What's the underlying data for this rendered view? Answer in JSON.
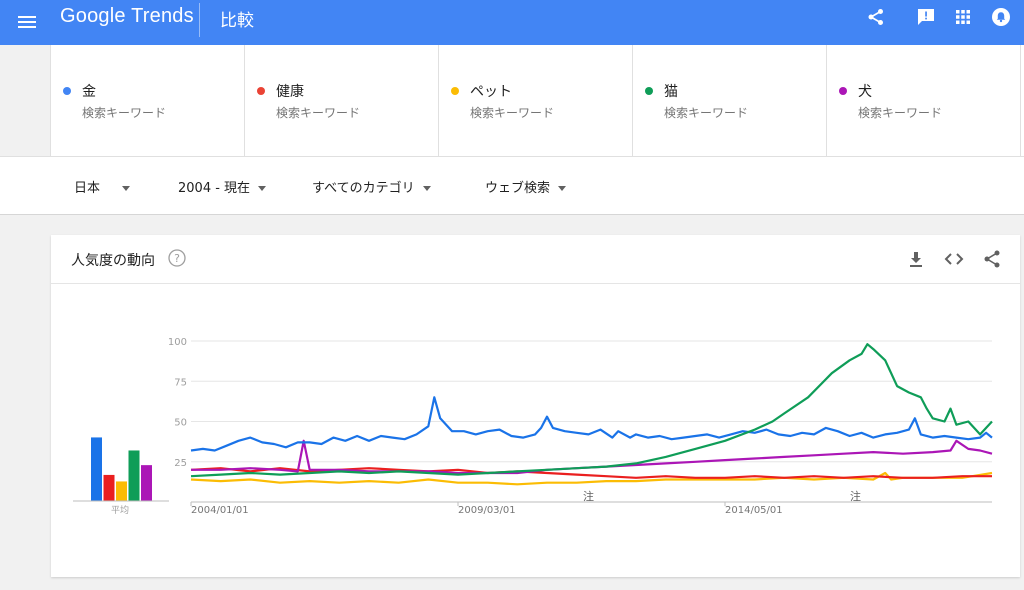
{
  "header": {
    "logo": "Google Trends",
    "page_title": "比較",
    "icons": [
      "menu-icon",
      "share-icon",
      "feedback-icon",
      "apps-icon",
      "notifications-icon"
    ]
  },
  "terms": [
    {
      "name": "金",
      "type": "検索キーワード",
      "color": "#4285f4"
    },
    {
      "name": "健康",
      "type": "検索キーワード",
      "color": "#ea4335"
    },
    {
      "name": "ペット",
      "type": "検索キーワード",
      "color": "#fbbc04"
    },
    {
      "name": "猫",
      "type": "検索キーワード",
      "color": "#0f9d58"
    },
    {
      "name": "犬",
      "type": "検索キーワード",
      "color": "#ab16b6"
    }
  ],
  "filters": {
    "region": "日本",
    "period": "2004 - 現在",
    "category": "すべてのカテゴリ",
    "search_type": "ウェブ検索"
  },
  "card": {
    "title": "人気度の動向",
    "icons": [
      "help-icon",
      "download-icon",
      "embed-icon",
      "share-icon"
    ]
  },
  "chart_data": {
    "type": "line",
    "ylim": [
      0,
      100
    ],
    "yticks": [
      "100",
      "75",
      "50",
      "25"
    ],
    "xticks": [
      "2004/01/01",
      "2009/03/01",
      "2014/05/01"
    ],
    "annotations": [
      "注",
      "注"
    ],
    "average_label": "平均",
    "averages": [
      {
        "name": "金",
        "value": 39,
        "color": "#1a73e8"
      },
      {
        "name": "健康",
        "value": 16,
        "color": "#ea1f1f"
      },
      {
        "name": "ペット",
        "value": 12,
        "color": "#fbbc04"
      },
      {
        "name": "猫",
        "value": 31,
        "color": "#0f9d58"
      },
      {
        "name": "犬",
        "value": 22,
        "color": "#ab16b6"
      }
    ],
    "series": [
      {
        "name": "金",
        "color": "#1a73e8",
        "points": [
          [
            0,
            32
          ],
          [
            2,
            33
          ],
          [
            4,
            32
          ],
          [
            6,
            35
          ],
          [
            8,
            38
          ],
          [
            10,
            40
          ],
          [
            12,
            37
          ],
          [
            14,
            36
          ],
          [
            16,
            34
          ],
          [
            18,
            37
          ],
          [
            20,
            37
          ],
          [
            22,
            36
          ],
          [
            24,
            40
          ],
          [
            26,
            38
          ],
          [
            28,
            41
          ],
          [
            30,
            38
          ],
          [
            32,
            41
          ],
          [
            34,
            40
          ],
          [
            36,
            39
          ],
          [
            38,
            42
          ],
          [
            40,
            47
          ],
          [
            41,
            65
          ],
          [
            42,
            52
          ],
          [
            44,
            44
          ],
          [
            46,
            44
          ],
          [
            48,
            42
          ],
          [
            50,
            44
          ],
          [
            52,
            45
          ],
          [
            54,
            41
          ],
          [
            56,
            40
          ],
          [
            58,
            42
          ],
          [
            59,
            46
          ],
          [
            60,
            53
          ],
          [
            61,
            46
          ],
          [
            63,
            44
          ],
          [
            65,
            43
          ],
          [
            67,
            42
          ],
          [
            69,
            45
          ],
          [
            71,
            40
          ],
          [
            72,
            44
          ],
          [
            74,
            40
          ],
          [
            75,
            42
          ],
          [
            77,
            40
          ],
          [
            79,
            41
          ],
          [
            81,
            39
          ],
          [
            83,
            40
          ],
          [
            85,
            41
          ],
          [
            87,
            42
          ],
          [
            89,
            40
          ],
          [
            91,
            42
          ],
          [
            93,
            44
          ],
          [
            95,
            43
          ],
          [
            97,
            45
          ],
          [
            99,
            42
          ],
          [
            101,
            41
          ],
          [
            103,
            43
          ],
          [
            105,
            42
          ],
          [
            107,
            46
          ],
          [
            109,
            44
          ],
          [
            111,
            41
          ],
          [
            113,
            43
          ],
          [
            115,
            40
          ],
          [
            117,
            42
          ],
          [
            119,
            43
          ],
          [
            121,
            45
          ],
          [
            122,
            52
          ],
          [
            123,
            42
          ],
          [
            125,
            40
          ],
          [
            127,
            41
          ],
          [
            129,
            40
          ],
          [
            131,
            39
          ],
          [
            133,
            40
          ],
          [
            134,
            43
          ],
          [
            135,
            40
          ]
        ]
      },
      {
        "name": "健康",
        "color": "#ea1f1f",
        "points": [
          [
            0,
            20
          ],
          [
            5,
            21
          ],
          [
            10,
            19
          ],
          [
            15,
            21
          ],
          [
            20,
            19
          ],
          [
            25,
            20
          ],
          [
            30,
            21
          ],
          [
            35,
            20
          ],
          [
            40,
            19
          ],
          [
            45,
            20
          ],
          [
            50,
            18
          ],
          [
            55,
            19
          ],
          [
            60,
            18
          ],
          [
            65,
            17
          ],
          [
            70,
            16
          ],
          [
            75,
            15
          ],
          [
            80,
            16
          ],
          [
            85,
            15
          ],
          [
            90,
            15
          ],
          [
            95,
            16
          ],
          [
            100,
            15
          ],
          [
            105,
            16
          ],
          [
            110,
            15
          ],
          [
            115,
            16
          ],
          [
            120,
            15
          ],
          [
            125,
            15
          ],
          [
            130,
            16
          ],
          [
            135,
            16
          ]
        ]
      },
      {
        "name": "ペット",
        "color": "#fbbc04",
        "points": [
          [
            0,
            14
          ],
          [
            5,
            13
          ],
          [
            10,
            14
          ],
          [
            15,
            12
          ],
          [
            20,
            13
          ],
          [
            25,
            12
          ],
          [
            30,
            13
          ],
          [
            35,
            12
          ],
          [
            40,
            14
          ],
          [
            45,
            12
          ],
          [
            50,
            12
          ],
          [
            55,
            11
          ],
          [
            60,
            12
          ],
          [
            65,
            12
          ],
          [
            70,
            13
          ],
          [
            75,
            13
          ],
          [
            80,
            14
          ],
          [
            85,
            14
          ],
          [
            90,
            14
          ],
          [
            95,
            14
          ],
          [
            100,
            15
          ],
          [
            105,
            14
          ],
          [
            110,
            15
          ],
          [
            115,
            14
          ],
          [
            117,
            18
          ],
          [
            118,
            14
          ],
          [
            120,
            15
          ],
          [
            125,
            15
          ],
          [
            130,
            15
          ],
          [
            135,
            18
          ]
        ]
      },
      {
        "name": "猫",
        "color": "#0f9d58",
        "points": [
          [
            0,
            16
          ],
          [
            5,
            17
          ],
          [
            10,
            18
          ],
          [
            15,
            17
          ],
          [
            20,
            18
          ],
          [
            25,
            19
          ],
          [
            30,
            18
          ],
          [
            35,
            19
          ],
          [
            40,
            18
          ],
          [
            45,
            17
          ],
          [
            50,
            18
          ],
          [
            55,
            19
          ],
          [
            60,
            20
          ],
          [
            65,
            21
          ],
          [
            70,
            22
          ],
          [
            75,
            24
          ],
          [
            80,
            28
          ],
          [
            85,
            33
          ],
          [
            90,
            38
          ],
          [
            95,
            45
          ],
          [
            98,
            50
          ],
          [
            100,
            55
          ],
          [
            104,
            65
          ],
          [
            108,
            80
          ],
          [
            111,
            88
          ],
          [
            113,
            92
          ],
          [
            114,
            98
          ],
          [
            115,
            95
          ],
          [
            117,
            88
          ],
          [
            119,
            72
          ],
          [
            121,
            68
          ],
          [
            123,
            65
          ],
          [
            124,
            58
          ],
          [
            125,
            52
          ],
          [
            127,
            50
          ],
          [
            128,
            58
          ],
          [
            129,
            48
          ],
          [
            131,
            50
          ],
          [
            133,
            42
          ],
          [
            135,
            50
          ]
        ]
      },
      {
        "name": "犬",
        "color": "#ab16b6",
        "points": [
          [
            0,
            20
          ],
          [
            5,
            20
          ],
          [
            10,
            21
          ],
          [
            15,
            20
          ],
          [
            18,
            19
          ],
          [
            19,
            38
          ],
          [
            20,
            20
          ],
          [
            25,
            20
          ],
          [
            30,
            19
          ],
          [
            35,
            19
          ],
          [
            40,
            19
          ],
          [
            45,
            18
          ],
          [
            50,
            18
          ],
          [
            55,
            18
          ],
          [
            60,
            20
          ],
          [
            65,
            21
          ],
          [
            70,
            22
          ],
          [
            75,
            23
          ],
          [
            80,
            24
          ],
          [
            85,
            25
          ],
          [
            90,
            26
          ],
          [
            95,
            27
          ],
          [
            100,
            28
          ],
          [
            105,
            29
          ],
          [
            110,
            30
          ],
          [
            115,
            31
          ],
          [
            120,
            30
          ],
          [
            125,
            31
          ],
          [
            128,
            32
          ],
          [
            129,
            38
          ],
          [
            131,
            33
          ],
          [
            133,
            32
          ],
          [
            135,
            30
          ]
        ]
      }
    ]
  }
}
